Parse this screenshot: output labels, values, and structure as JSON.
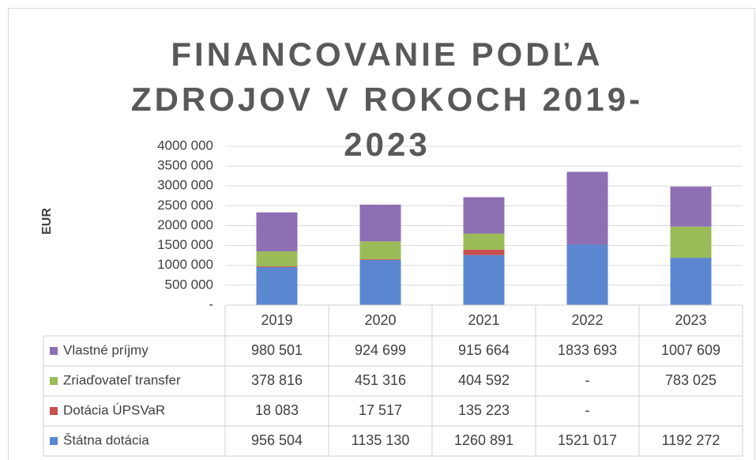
{
  "chart_data": {
    "type": "bar",
    "stacked": true,
    "title": "FINANCOVANIE PODĽA ZDROJOV V ROKOCH 2019-2023",
    "y_label": "EUR",
    "categories": [
      "2019",
      "2020",
      "2021",
      "2022",
      "2023"
    ],
    "series": [
      {
        "name": "Štátna dotácia",
        "color": "#5b87d0",
        "values": [
          956504,
          1135130,
          1260891,
          1521017,
          1192272
        ],
        "value_labels": [
          "956 504",
          "1135 130",
          "1260 891",
          "1521 017",
          "1192 272"
        ]
      },
      {
        "name": "Dotácia ÚPSVaR",
        "color": "#c9504d",
        "values": [
          18083,
          17517,
          135223,
          null,
          null
        ],
        "value_labels": [
          "18 083",
          "17 517",
          "135 223",
          "-",
          null
        ]
      },
      {
        "name": "Zriaďovateľ transfer",
        "color": "#9bbb59",
        "values": [
          378816,
          451316,
          404592,
          null,
          783025
        ],
        "value_labels": [
          "378 816",
          "451 316",
          "404 592",
          "-",
          "783 025"
        ]
      },
      {
        "name": "Vlastné príjmy",
        "color": "#8e6fb4",
        "values": [
          980501,
          924699,
          915664,
          1833693,
          1007609
        ],
        "value_labels": [
          "980 501",
          "924 699",
          "915 664",
          "1833 693",
          "1007 609"
        ]
      }
    ],
    "ylim": [
      0,
      4000000
    ],
    "yticks": [
      {
        "value": 0,
        "label": "-"
      },
      {
        "value": 500000,
        "label": "500 000"
      },
      {
        "value": 1000000,
        "label": "1000 000"
      },
      {
        "value": 1500000,
        "label": "1500 000"
      },
      {
        "value": 2000000,
        "label": "2000 000"
      },
      {
        "value": 2500000,
        "label": "2500 000"
      },
      {
        "value": 3000000,
        "label": "3000 000"
      },
      {
        "value": 3500000,
        "label": "3500 000"
      },
      {
        "value": 4000000,
        "label": "4000 000"
      }
    ],
    "grid": true,
    "legend": "table"
  }
}
